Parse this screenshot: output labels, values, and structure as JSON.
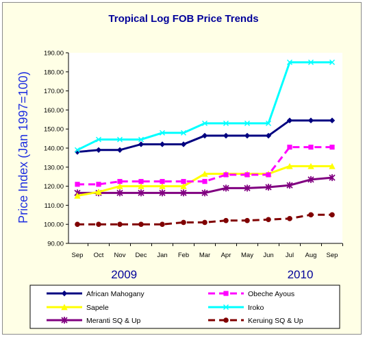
{
  "chart_data": {
    "type": "line",
    "title": "Tropical Log FOB Price Trends",
    "ylabel": "Price Index (Jan 1997=100)",
    "xlabel": "",
    "categories": [
      "Sep",
      "Oct",
      "Nov",
      "Dec",
      "Jan",
      "Feb",
      "Mar",
      "Apr",
      "May",
      "Jun",
      "Jul",
      "Aug",
      "Sep"
    ],
    "year_labels": [
      {
        "label": "2009",
        "category_index": 2.2
      },
      {
        "label": "2010",
        "category_index": 10.5
      }
    ],
    "ylim": [
      90,
      190
    ],
    "yticks": [
      "90.00",
      "100.00",
      "110.00",
      "120.00",
      "130.00",
      "140.00",
      "150.00",
      "160.00",
      "170.00",
      "180.00",
      "190.00"
    ],
    "grid": false,
    "legend_position": "bottom",
    "series": [
      {
        "name": "African Mahogany",
        "color": "#000080",
        "marker": "diamond",
        "dash": "solid",
        "values": [
          138,
          139,
          139,
          142,
          142,
          142,
          146.5,
          146.5,
          146.5,
          146.5,
          154.5,
          154.5,
          154.5
        ]
      },
      {
        "name": "Obeche Ayous",
        "color": "#ff00ff",
        "marker": "square",
        "dash": "dashed",
        "values": [
          121,
          121,
          122.5,
          122.5,
          122.5,
          122.5,
          122.5,
          126,
          126,
          126,
          140.5,
          140.5,
          140.5
        ]
      },
      {
        "name": "Sapele",
        "color": "#ffff00",
        "marker": "triangle",
        "dash": "solid",
        "values": [
          115,
          117,
          120,
          120,
          120,
          120,
          126.5,
          126.5,
          126.5,
          126.5,
          130.5,
          130.5,
          130.5
        ]
      },
      {
        "name": "Iroko",
        "color": "#00ffff",
        "marker": "x",
        "dash": "solid",
        "values": [
          139,
          144.5,
          144.5,
          144.5,
          148,
          148,
          153,
          153,
          153,
          153,
          185,
          185,
          185
        ]
      },
      {
        "name": "Meranti SQ & Up",
        "color": "#800080",
        "marker": "star",
        "dash": "solid",
        "values": [
          116.5,
          116.5,
          116.5,
          116.5,
          116.5,
          116.5,
          116.5,
          119,
          119,
          119.5,
          120.5,
          123.5,
          124.5
        ]
      },
      {
        "name": "Keruing SQ & Up",
        "color": "#800000",
        "marker": "circle",
        "dash": "dashed",
        "values": [
          100,
          100,
          100,
          100,
          100,
          101,
          101,
          102,
          102,
          102.5,
          103,
          105,
          105
        ]
      }
    ]
  }
}
